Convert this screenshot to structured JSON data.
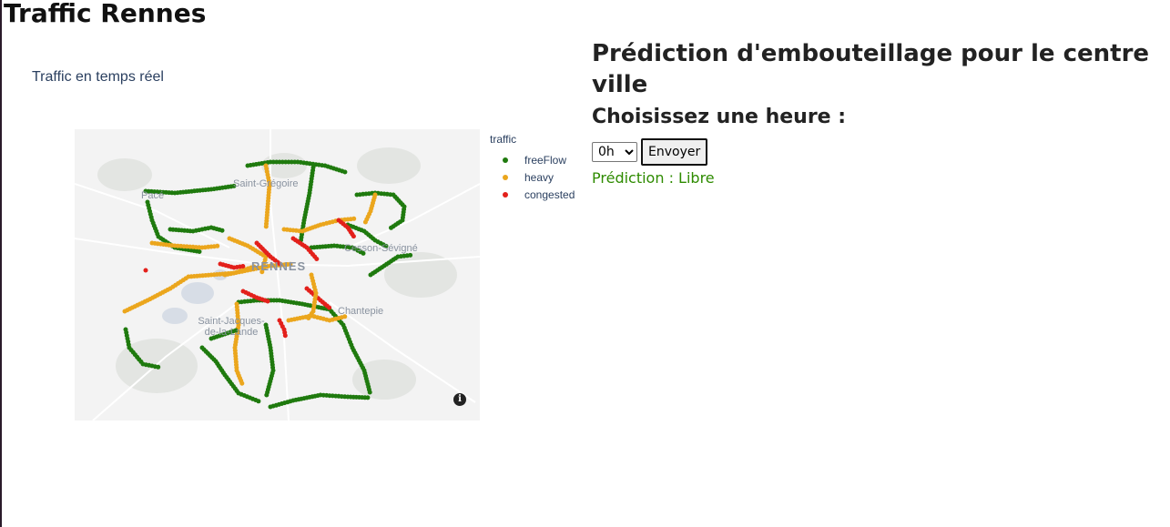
{
  "page": {
    "title": "Traffic Rennes"
  },
  "map_panel": {
    "title": "Traffic en temps réel",
    "places": [
      "Pacé",
      "Saint-Grégoire",
      "Cesson-Sévigné",
      "RENNES",
      "Saint-Jacques-de-la-Lande",
      "Chantepie"
    ],
    "info_glyph": "i"
  },
  "legend": {
    "title": "traffic",
    "items": [
      {
        "label": "freeFlow",
        "color": "#1f7a0e"
      },
      {
        "label": "heavy",
        "color": "#eba61d"
      },
      {
        "label": "congested",
        "color": "#e3201b"
      }
    ]
  },
  "prediction": {
    "title": "Prédiction d'embouteillage pour le centre ville",
    "choose_label": "Choisissez une heure :",
    "hour_selected": "0h",
    "hour_options": [
      "0h"
    ],
    "button_label": "Envoyer",
    "result_text": "Prédiction : Libre",
    "result_color": "#2e8b00"
  },
  "colors": {
    "map_background": "#f3f3f3",
    "title_text": "#2a3f5f"
  }
}
